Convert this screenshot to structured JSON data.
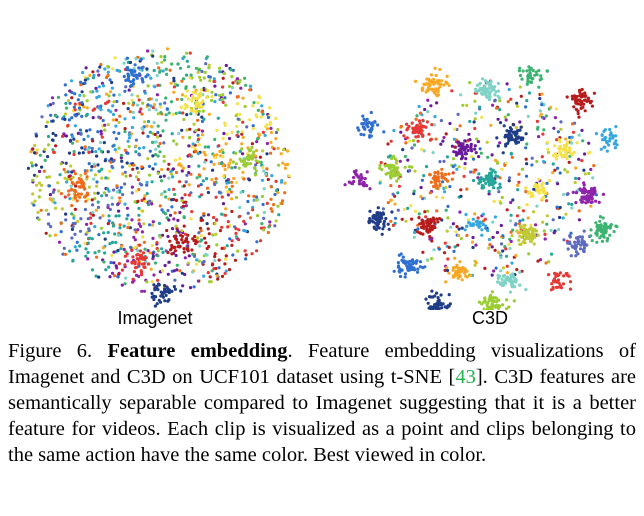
{
  "figure": {
    "panels": [
      {
        "label": "Imagenet"
      },
      {
        "label": "C3D"
      }
    ],
    "palette": [
      "#1f3c88",
      "#2f6fd0",
      "#35a7e0",
      "#7fd3c6",
      "#3cb371",
      "#9acd32",
      "#f5e14a",
      "#f9a825",
      "#ef6c1a",
      "#e53935",
      "#b71c1c",
      "#6a1b9a",
      "#8e24aa",
      "#26a69a",
      "#5c6bc0",
      "#c0ca33"
    ]
  },
  "caption": {
    "figure_number": "Figure 6.",
    "bold_title": "Feature embedding",
    "text_before_cite": ". Feature embedding visualizations of Imagenet and C3D on UCF101 dataset using t-SNE [",
    "citation": "43",
    "text_after_cite": "]. C3D features are semantically separable compared to Imagenet suggesting that it is a better feature for videos. Each clip is visualized as a point and clips belonging to the same action have the same color. Best viewed in color."
  }
}
